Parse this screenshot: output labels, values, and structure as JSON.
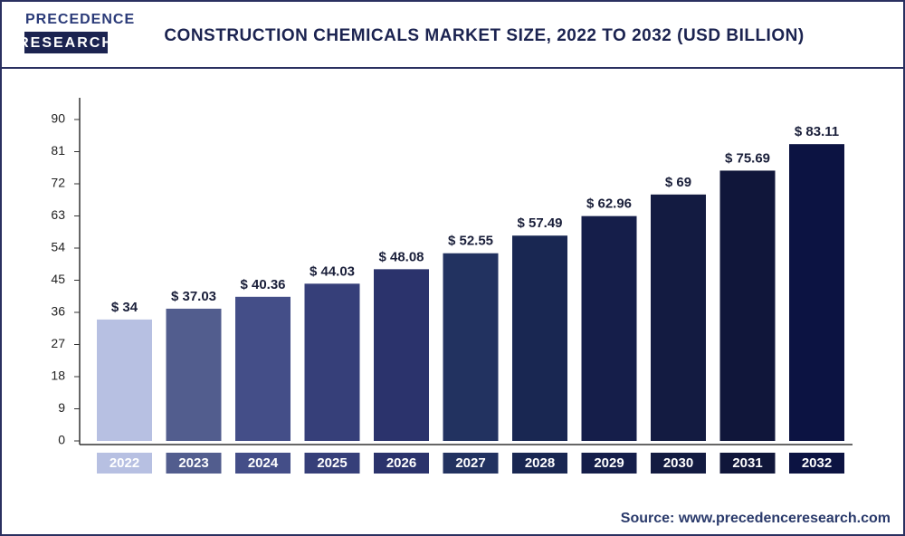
{
  "header": {
    "logo_top": "PRECEDENCE",
    "logo_bottom": "RESEARCH"
  },
  "chart_data": {
    "type": "bar",
    "title": "CONSTRUCTION CHEMICALS MARKET SIZE, 2022 TO 2032 (USD BILLION)",
    "categories": [
      "2022",
      "2023",
      "2024",
      "2025",
      "2026",
      "2027",
      "2028",
      "2029",
      "2030",
      "2031",
      "2032"
    ],
    "values": [
      34,
      37.03,
      40.36,
      44.03,
      48.08,
      52.55,
      57.49,
      62.96,
      69,
      75.69,
      83.11
    ],
    "value_labels": [
      "$ 34",
      "$ 37.03",
      "$ 40.36",
      "$ 44.03",
      "$ 48.08",
      "$ 52.55",
      "$ 57.49",
      "$ 62.96",
      "$ 69",
      "$ 75.69",
      "$ 83.11"
    ],
    "colors": [
      "#b7c0e2",
      "#525d8e",
      "#444e88",
      "#363f79",
      "#2b336c",
      "#223260",
      "#192752",
      "#151e4a",
      "#131b41",
      "#10163a",
      "#0c1342"
    ],
    "ylim": [
      0,
      90
    ],
    "yticks": [
      0,
      9,
      18,
      27,
      36,
      45,
      54,
      63,
      72,
      81,
      90
    ],
    "source": "Source: www.precedenceresearch.com"
  }
}
